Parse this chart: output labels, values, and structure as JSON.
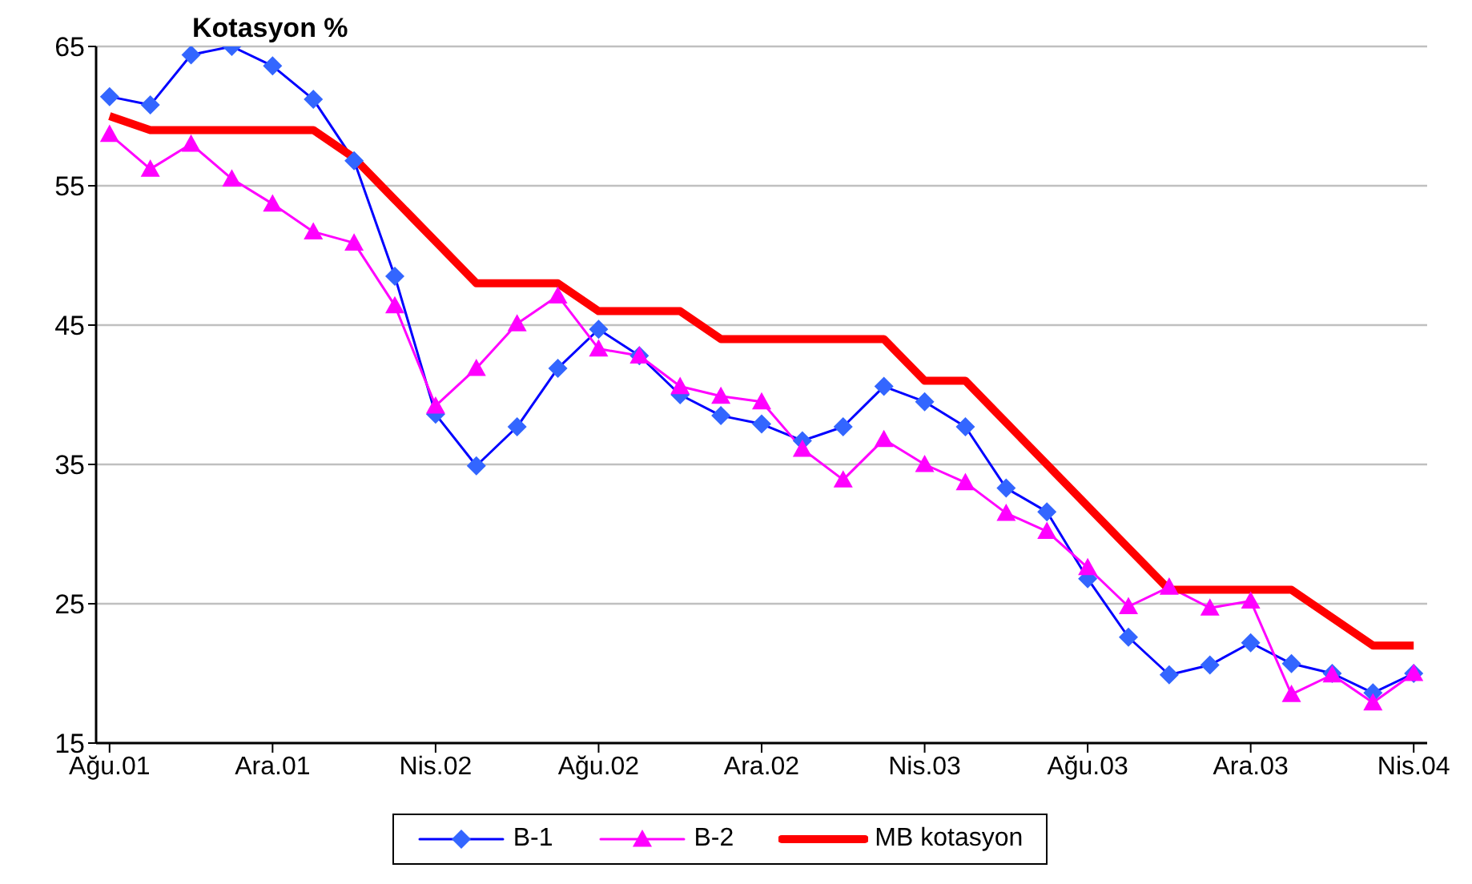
{
  "chart_data": {
    "type": "line",
    "title": "Kotasyon %",
    "categories": [
      "Ağu.01",
      null,
      null,
      null,
      "Ara.01",
      null,
      null,
      null,
      "Nis.02",
      null,
      null,
      null,
      "Ağu.02",
      null,
      null,
      null,
      "Ara.02",
      null,
      null,
      null,
      "Nis.03",
      null,
      null,
      null,
      "Ağu.03",
      null,
      null,
      null,
      "Ara.03",
      null,
      null,
      null,
      "Nis.04"
    ],
    "series": [
      {
        "name": "B-1",
        "color": "#0000ff",
        "marker": "diamond",
        "values": [
          61.4,
          60.8,
          64.4,
          65,
          63.6,
          61.2,
          56.8,
          48.5,
          38.6,
          34.9,
          37.7,
          41.9,
          44.7,
          42.8,
          40.0,
          38.5,
          37.9,
          36.7,
          37.7,
          40.6,
          39.5,
          37.7,
          33.3,
          31.6,
          26.8,
          22.6,
          19.9,
          20.6,
          22.2,
          20.7,
          20.0,
          18.6,
          20.0
        ]
      },
      {
        "name": "B-2",
        "color": "#ff00ff",
        "marker": "triangle",
        "values": [
          58.7,
          56.2,
          58.0,
          55.5,
          53.7,
          51.7,
          50.9,
          46.4,
          39.2,
          41.9,
          45.1,
          47.1,
          43.3,
          42.8,
          40.6,
          39.9,
          39.5,
          36.1,
          33.9,
          36.8,
          35.0,
          33.7,
          31.5,
          30.2,
          27.6,
          24.8,
          26.2,
          24.7,
          25.2,
          18.5,
          19.9,
          17.9,
          20.0
        ]
      },
      {
        "name": "MB kotasyon",
        "color": "#ff0000",
        "marker": "none",
        "values": [
          60,
          59,
          59,
          59,
          59,
          59,
          57,
          54,
          51,
          48,
          48,
          48,
          46,
          46,
          46,
          44,
          44,
          44,
          44,
          44,
          41,
          41,
          38,
          35,
          32,
          29,
          26,
          26,
          26,
          26,
          24,
          22,
          22
        ]
      }
    ],
    "ylim": [
      15,
      65
    ],
    "yticks": [
      15,
      25,
      35,
      45,
      55,
      65
    ],
    "grid": "y",
    "legend": "bottom"
  }
}
